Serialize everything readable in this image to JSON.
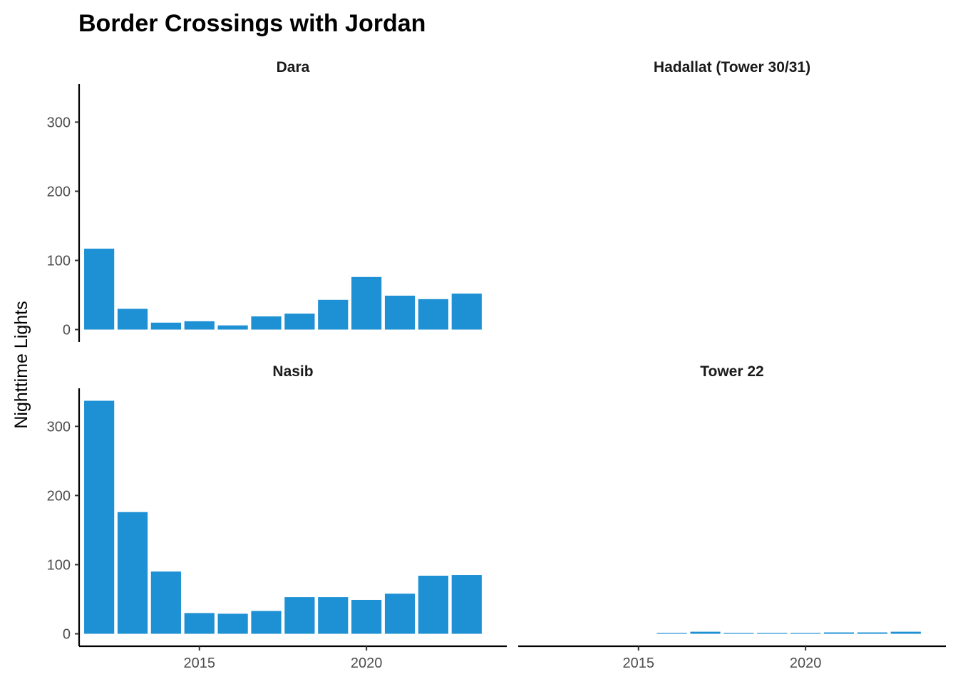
{
  "chart_data": {
    "type": "bar",
    "title": "Border Crossings with Jordan",
    "xlabel": "",
    "ylabel": "Nighttime Lights",
    "x": [
      2012,
      2013,
      2014,
      2015,
      2016,
      2017,
      2018,
      2019,
      2020,
      2021,
      2022,
      2023
    ],
    "xlim": [
      2011.4,
      2024.2
    ],
    "ylim": [
      -18,
      355
    ],
    "x_ticks": [
      2015,
      2020
    ],
    "y_ticks": [
      0,
      100,
      200,
      300
    ],
    "bar_color": "#1E90D4",
    "grid": false,
    "layout": "facet-wrap 2x2, shared axes",
    "panels": [
      {
        "name": "Dara",
        "values": [
          117,
          30,
          10,
          12,
          6,
          19,
          23,
          43,
          76,
          49,
          44,
          52
        ]
      },
      {
        "name": "Hadallat (Tower 30/31)",
        "values": [
          null,
          null,
          null,
          null,
          null,
          null,
          null,
          null,
          null,
          null,
          null,
          null
        ]
      },
      {
        "name": "Nasib",
        "values": [
          337,
          176,
          90,
          30,
          29,
          33,
          53,
          53,
          49,
          58,
          84,
          85
        ]
      },
      {
        "name": "Tower 22",
        "values": [
          null,
          null,
          null,
          null,
          0.5,
          3,
          1,
          1,
          1,
          2,
          2,
          3
        ]
      }
    ]
  }
}
